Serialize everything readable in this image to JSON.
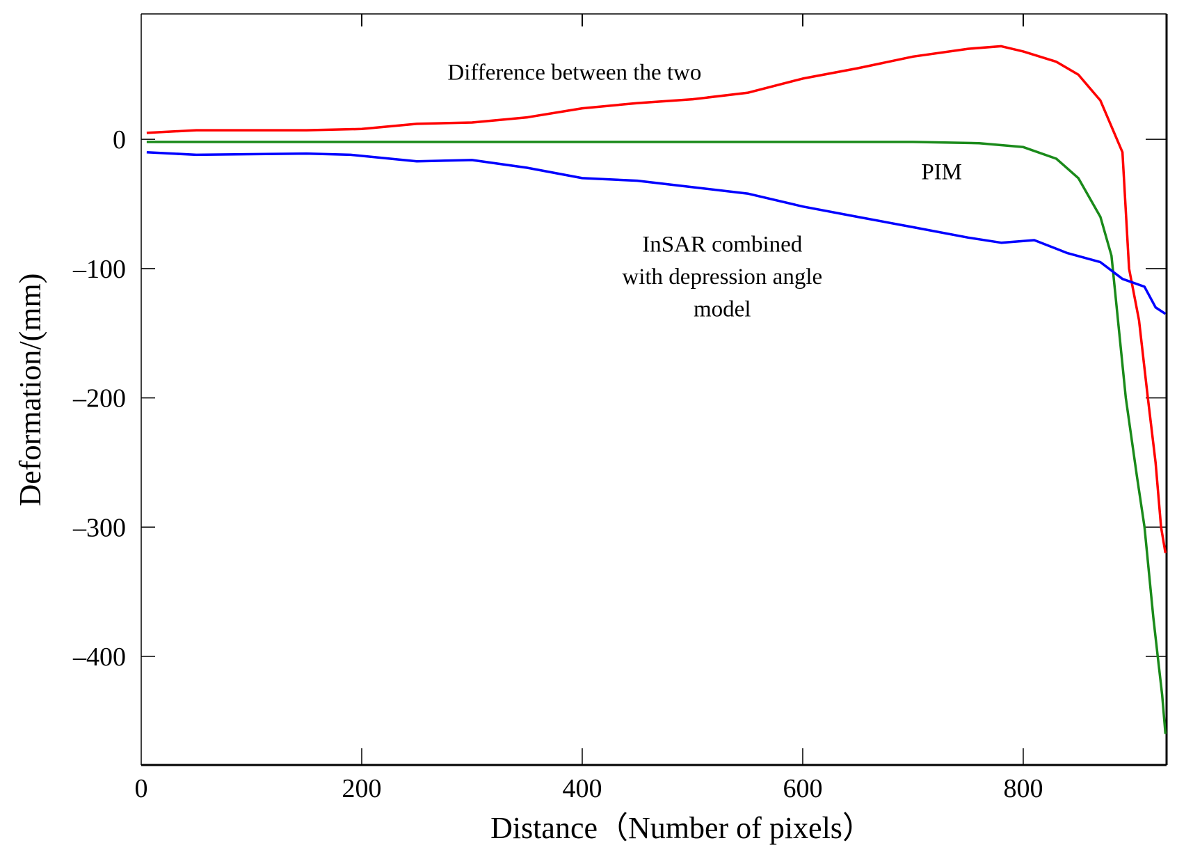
{
  "chart_data": {
    "type": "line",
    "title": "",
    "xlabel": "Distance（Number of pixels）",
    "ylabel": "Deformation/(mm)",
    "xlim": [
      0,
      930
    ],
    "ylim": [
      -484,
      97
    ],
    "grid": false,
    "xticks": [
      0,
      200,
      400,
      600,
      800
    ],
    "xtick_labels": [
      "0",
      "200",
      "400",
      "600",
      "800"
    ],
    "yticks": [
      0,
      -100,
      -200,
      -300,
      -400
    ],
    "ytick_labels": [
      "0",
      "–100",
      "–200",
      "–300",
      "–400"
    ],
    "series": [
      {
        "name": "Difference between the two",
        "color": "#ff0000",
        "x": [
          5,
          50,
          150,
          200,
          250,
          300,
          350,
          400,
          450,
          500,
          550,
          600,
          650,
          700,
          750,
          780,
          800,
          830,
          850,
          870,
          890,
          896,
          905,
          913,
          920,
          925,
          929
        ],
        "y": [
          5,
          7,
          7,
          8,
          12,
          13,
          17,
          24,
          28,
          31,
          36,
          47,
          55,
          64,
          70,
          72,
          68,
          60,
          50,
          30,
          -10,
          -100,
          -140,
          -200,
          -250,
          -300,
          -320
        ]
      },
      {
        "name": "PIM",
        "color": "#1a8a1a",
        "x": [
          5,
          300,
          600,
          700,
          760,
          800,
          830,
          850,
          870,
          880,
          893,
          903,
          910,
          918,
          922,
          926,
          929
        ],
        "y": [
          -2,
          -2,
          -2,
          -2,
          -3,
          -6,
          -15,
          -30,
          -60,
          -90,
          -200,
          -260,
          -300,
          -370,
          -400,
          -430,
          -460
        ]
      },
      {
        "name": "InSAR combined with depression angle model",
        "color": "#0000ff",
        "x": [
          5,
          50,
          150,
          190,
          250,
          300,
          350,
          400,
          450,
          500,
          550,
          600,
          650,
          700,
          750,
          780,
          810,
          840,
          870,
          890,
          910,
          920,
          929
        ],
        "y": [
          -10,
          -12,
          -11,
          -12,
          -17,
          -16,
          -22,
          -30,
          -32,
          -37,
          -42,
          -52,
          -60,
          -68,
          -76,
          -80,
          -78,
          -88,
          -95,
          -108,
          -114,
          -130,
          -135
        ]
      }
    ],
    "annotations": [
      {
        "text": "Difference between the two",
        "x": 393,
        "y": 52
      },
      {
        "text": "PIM",
        "x": 726,
        "y": -25
      },
      {
        "text": "InSAR combined",
        "x": 527,
        "y": -81
      },
      {
        "text": "with depression angle",
        "x": 527,
        "y": -106
      },
      {
        "text": "model",
        "x": 527,
        "y": -131
      }
    ]
  }
}
